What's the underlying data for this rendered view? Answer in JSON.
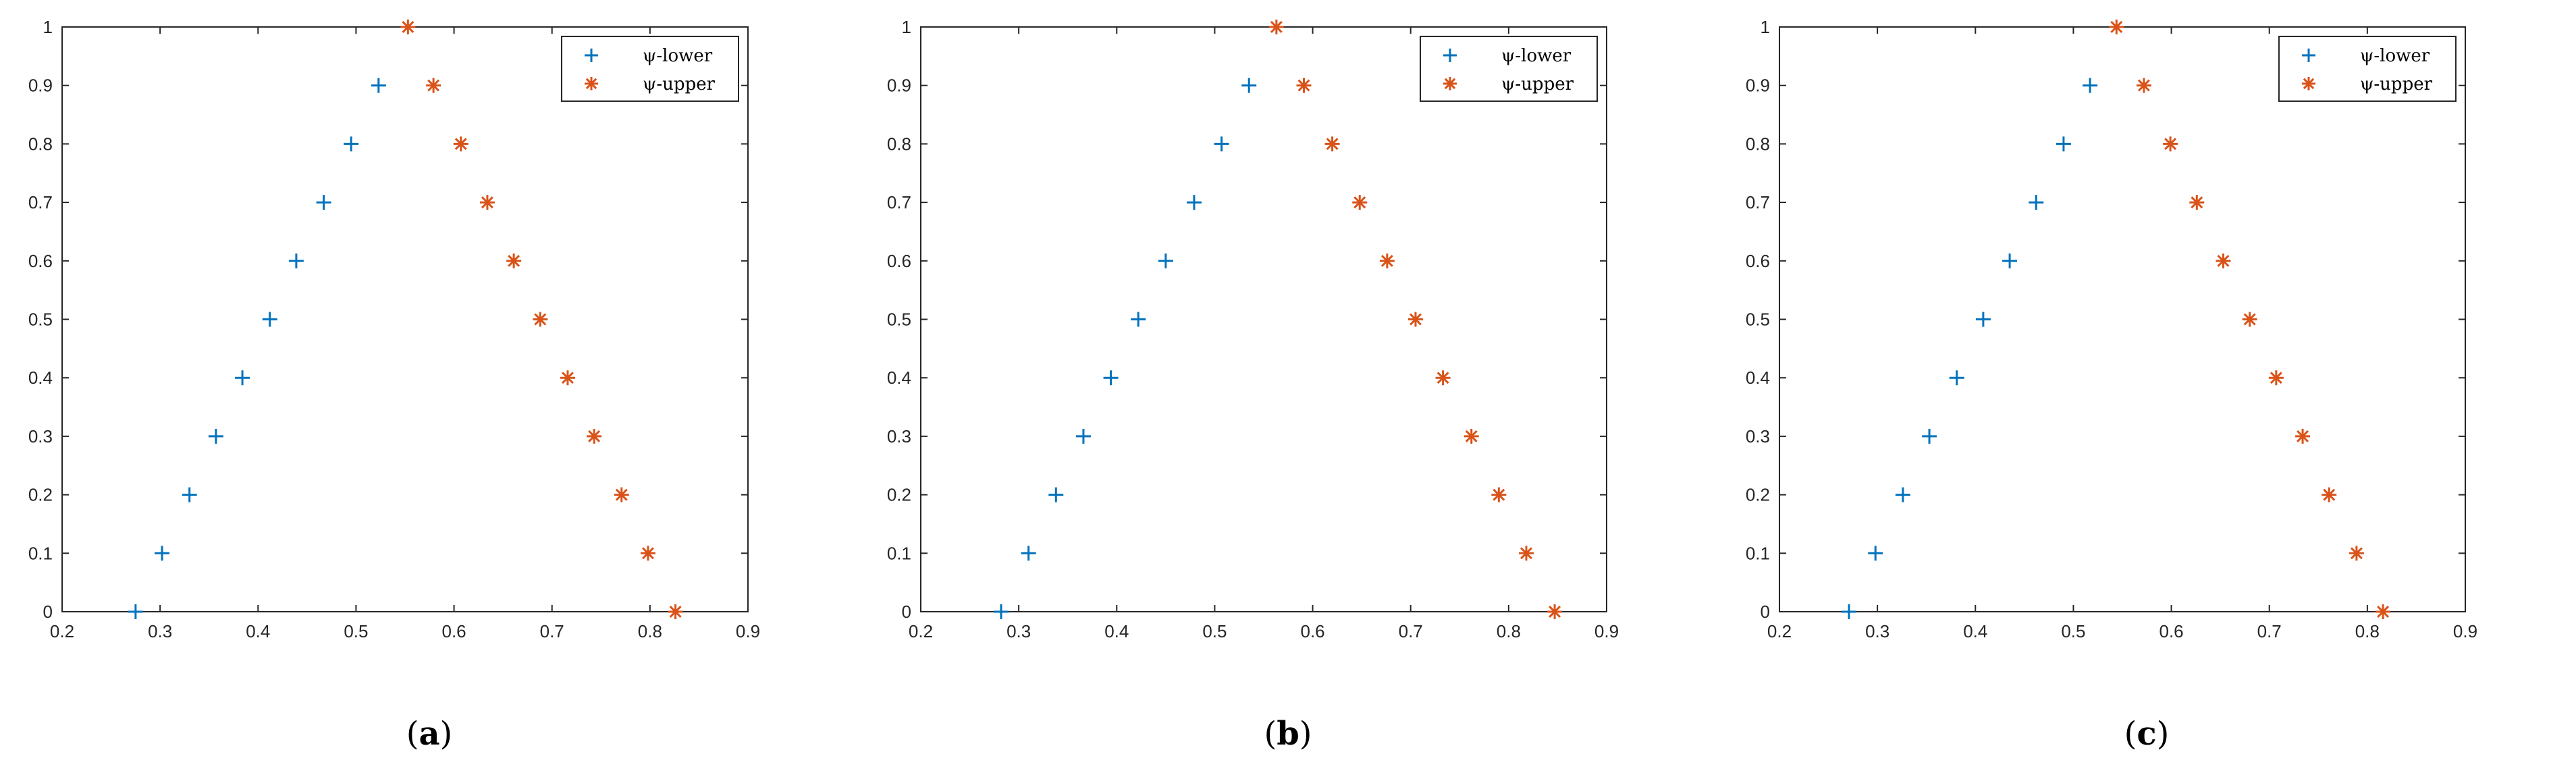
{
  "chart_data": [
    {
      "type": "scatter",
      "caption_letter": "a",
      "xlim": [
        0.2,
        0.9
      ],
      "ylim": [
        0,
        1
      ],
      "xticks": [
        "0.2",
        "0.3",
        "0.4",
        "0.5",
        "0.6",
        "0.7",
        "0.8",
        "0.9"
      ],
      "yticks": [
        "0",
        "0.1",
        "0.2",
        "0.3",
        "0.4",
        "0.5",
        "0.6",
        "0.7",
        "0.8",
        "0.9",
        "1"
      ],
      "legend_position": "top-right",
      "series": [
        {
          "name": "ψ-lower",
          "marker": "+",
          "color": "#0072BD",
          "x": [
            0.275,
            0.302,
            0.33,
            0.357,
            0.384,
            0.412,
            0.439,
            0.467,
            0.495,
            0.523
          ],
          "y": [
            0,
            0.1,
            0.2,
            0.3,
            0.4,
            0.5,
            0.6,
            0.7,
            0.8,
            0.9
          ]
        },
        {
          "name": "ψ-upper",
          "marker": "*",
          "color": "#D95319",
          "x": [
            0.553,
            0.579,
            0.607,
            0.634,
            0.661,
            0.688,
            0.716,
            0.743,
            0.771,
            0.798,
            0.826
          ],
          "y": [
            1,
            0.9,
            0.8,
            0.7,
            0.6,
            0.5,
            0.4,
            0.3,
            0.2,
            0.1,
            0
          ]
        }
      ]
    },
    {
      "type": "scatter",
      "caption_letter": "b",
      "xlim": [
        0.2,
        0.9
      ],
      "ylim": [
        0,
        1
      ],
      "xticks": [
        "0.2",
        "0.3",
        "0.4",
        "0.5",
        "0.6",
        "0.7",
        "0.8",
        "0.9"
      ],
      "yticks": [
        "0",
        "0.1",
        "0.2",
        "0.3",
        "0.4",
        "0.5",
        "0.6",
        "0.7",
        "0.8",
        "0.9",
        "1"
      ],
      "legend_position": "top-right",
      "series": [
        {
          "name": "ψ-lower",
          "marker": "+",
          "color": "#0072BD",
          "x": [
            0.282,
            0.31,
            0.338,
            0.366,
            0.394,
            0.422,
            0.45,
            0.479,
            0.507,
            0.535
          ],
          "y": [
            0,
            0.1,
            0.2,
            0.3,
            0.4,
            0.5,
            0.6,
            0.7,
            0.8,
            0.9
          ]
        },
        {
          "name": "ψ-upper",
          "marker": "*",
          "color": "#D95319",
          "x": [
            0.563,
            0.591,
            0.62,
            0.648,
            0.676,
            0.705,
            0.733,
            0.762,
            0.79,
            0.818,
            0.847
          ],
          "y": [
            1,
            0.9,
            0.8,
            0.7,
            0.6,
            0.5,
            0.4,
            0.3,
            0.2,
            0.1,
            0
          ]
        }
      ]
    },
    {
      "type": "scatter",
      "caption_letter": "c",
      "xlim": [
        0.2,
        0.9
      ],
      "ylim": [
        0,
        1
      ],
      "xticks": [
        "0.2",
        "0.3",
        "0.4",
        "0.5",
        "0.6",
        "0.7",
        "0.8",
        "0.9"
      ],
      "yticks": [
        "0",
        "0.1",
        "0.2",
        "0.3",
        "0.4",
        "0.5",
        "0.6",
        "0.7",
        "0.8",
        "0.9",
        "1"
      ],
      "legend_position": "top-right",
      "series": [
        {
          "name": "ψ-lower",
          "marker": "+",
          "color": "#0072BD",
          "x": [
            0.271,
            0.298,
            0.326,
            0.353,
            0.381,
            0.408,
            0.435,
            0.462,
            0.49,
            0.517
          ],
          "y": [
            0,
            0.1,
            0.2,
            0.3,
            0.4,
            0.5,
            0.6,
            0.7,
            0.8,
            0.9
          ]
        },
        {
          "name": "ψ-upper",
          "marker": "*",
          "color": "#D95319",
          "x": [
            0.544,
            0.572,
            0.599,
            0.626,
            0.653,
            0.68,
            0.707,
            0.734,
            0.761,
            0.789,
            0.816
          ],
          "y": [
            1,
            0.9,
            0.8,
            0.7,
            0.6,
            0.5,
            0.4,
            0.3,
            0.2,
            0.1,
            0
          ]
        }
      ]
    }
  ]
}
